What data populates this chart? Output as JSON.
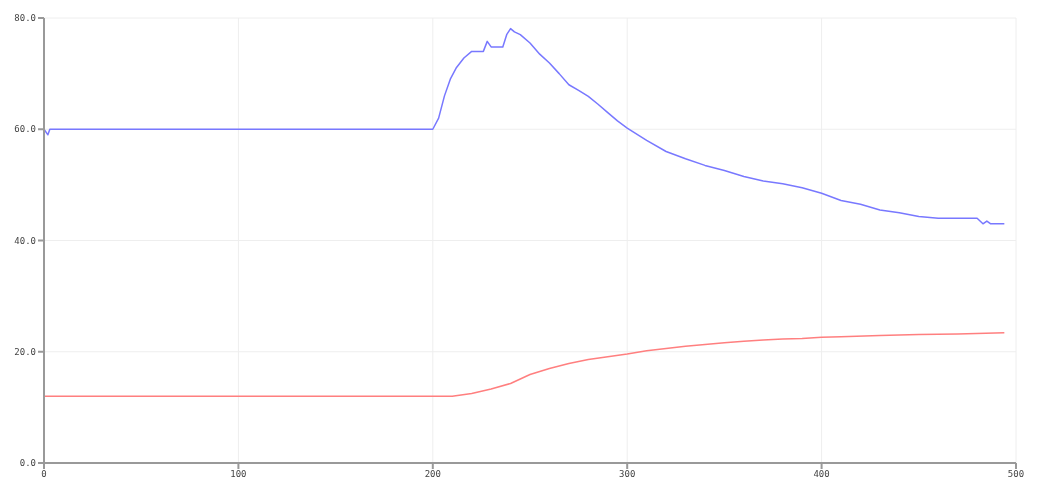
{
  "chart_data": {
    "type": "line",
    "xlim": [
      0,
      500
    ],
    "xticks": [
      0,
      100,
      200,
      300,
      400,
      500
    ],
    "ylim": [
      0,
      80
    ],
    "yticks": [
      {
        "value": 0,
        "label": "0.0"
      },
      {
        "value": 20,
        "label": "20.0"
      },
      {
        "value": 40,
        "label": "40.0"
      },
      {
        "value": 60,
        "label": "60.0"
      },
      {
        "value": 80,
        "label": "80.0"
      }
    ],
    "grid": true,
    "marker": "none",
    "line_style": "solid",
    "series": [
      {
        "color": "#7878ff",
        "x": [
          0,
          2,
          3,
          5,
          100,
          200,
          203,
          206,
          209,
          212,
          216,
          220,
          226,
          228,
          230,
          236,
          238,
          240,
          242,
          245,
          250,
          255,
          260,
          265,
          270,
          275,
          280,
          285,
          290,
          295,
          300,
          310,
          320,
          330,
          340,
          350,
          360,
          370,
          380,
          390,
          400,
          410,
          420,
          430,
          440,
          450,
          460,
          470,
          480,
          483,
          485,
          487,
          490,
          494
        ],
        "values": [
          60,
          59,
          60,
          60,
          60,
          60,
          62,
          66,
          69,
          71,
          72.8,
          74,
          74,
          75.8,
          74.8,
          74.8,
          77,
          78.1,
          77.5,
          77,
          75.5,
          73.5,
          71.9,
          70,
          68,
          67,
          65.9,
          64.5,
          63,
          61.5,
          60.2,
          58,
          56,
          54.7,
          53.5,
          52.6,
          51.5,
          50.7,
          50.2,
          49.5,
          48.5,
          47.2,
          46.5,
          45.5,
          45,
          44.3,
          44,
          44,
          44,
          43,
          43.5,
          43,
          43,
          43
        ]
      },
      {
        "color": "#ff7f7f",
        "x": [
          0,
          100,
          200,
          210,
          220,
          230,
          240,
          250,
          260,
          270,
          280,
          290,
          300,
          310,
          320,
          330,
          340,
          350,
          360,
          370,
          380,
          390,
          400,
          410,
          430,
          450,
          470,
          494
        ],
        "values": [
          12,
          12,
          12,
          12,
          12.5,
          13.3,
          14.3,
          15.9,
          17,
          17.9,
          18.6,
          19.1,
          19.6,
          20.2,
          20.6,
          21,
          21.3,
          21.6,
          21.9,
          22.1,
          22.3,
          22.4,
          22.6,
          22.7,
          22.9,
          23.1,
          23.2,
          23.4
        ]
      }
    ]
  }
}
